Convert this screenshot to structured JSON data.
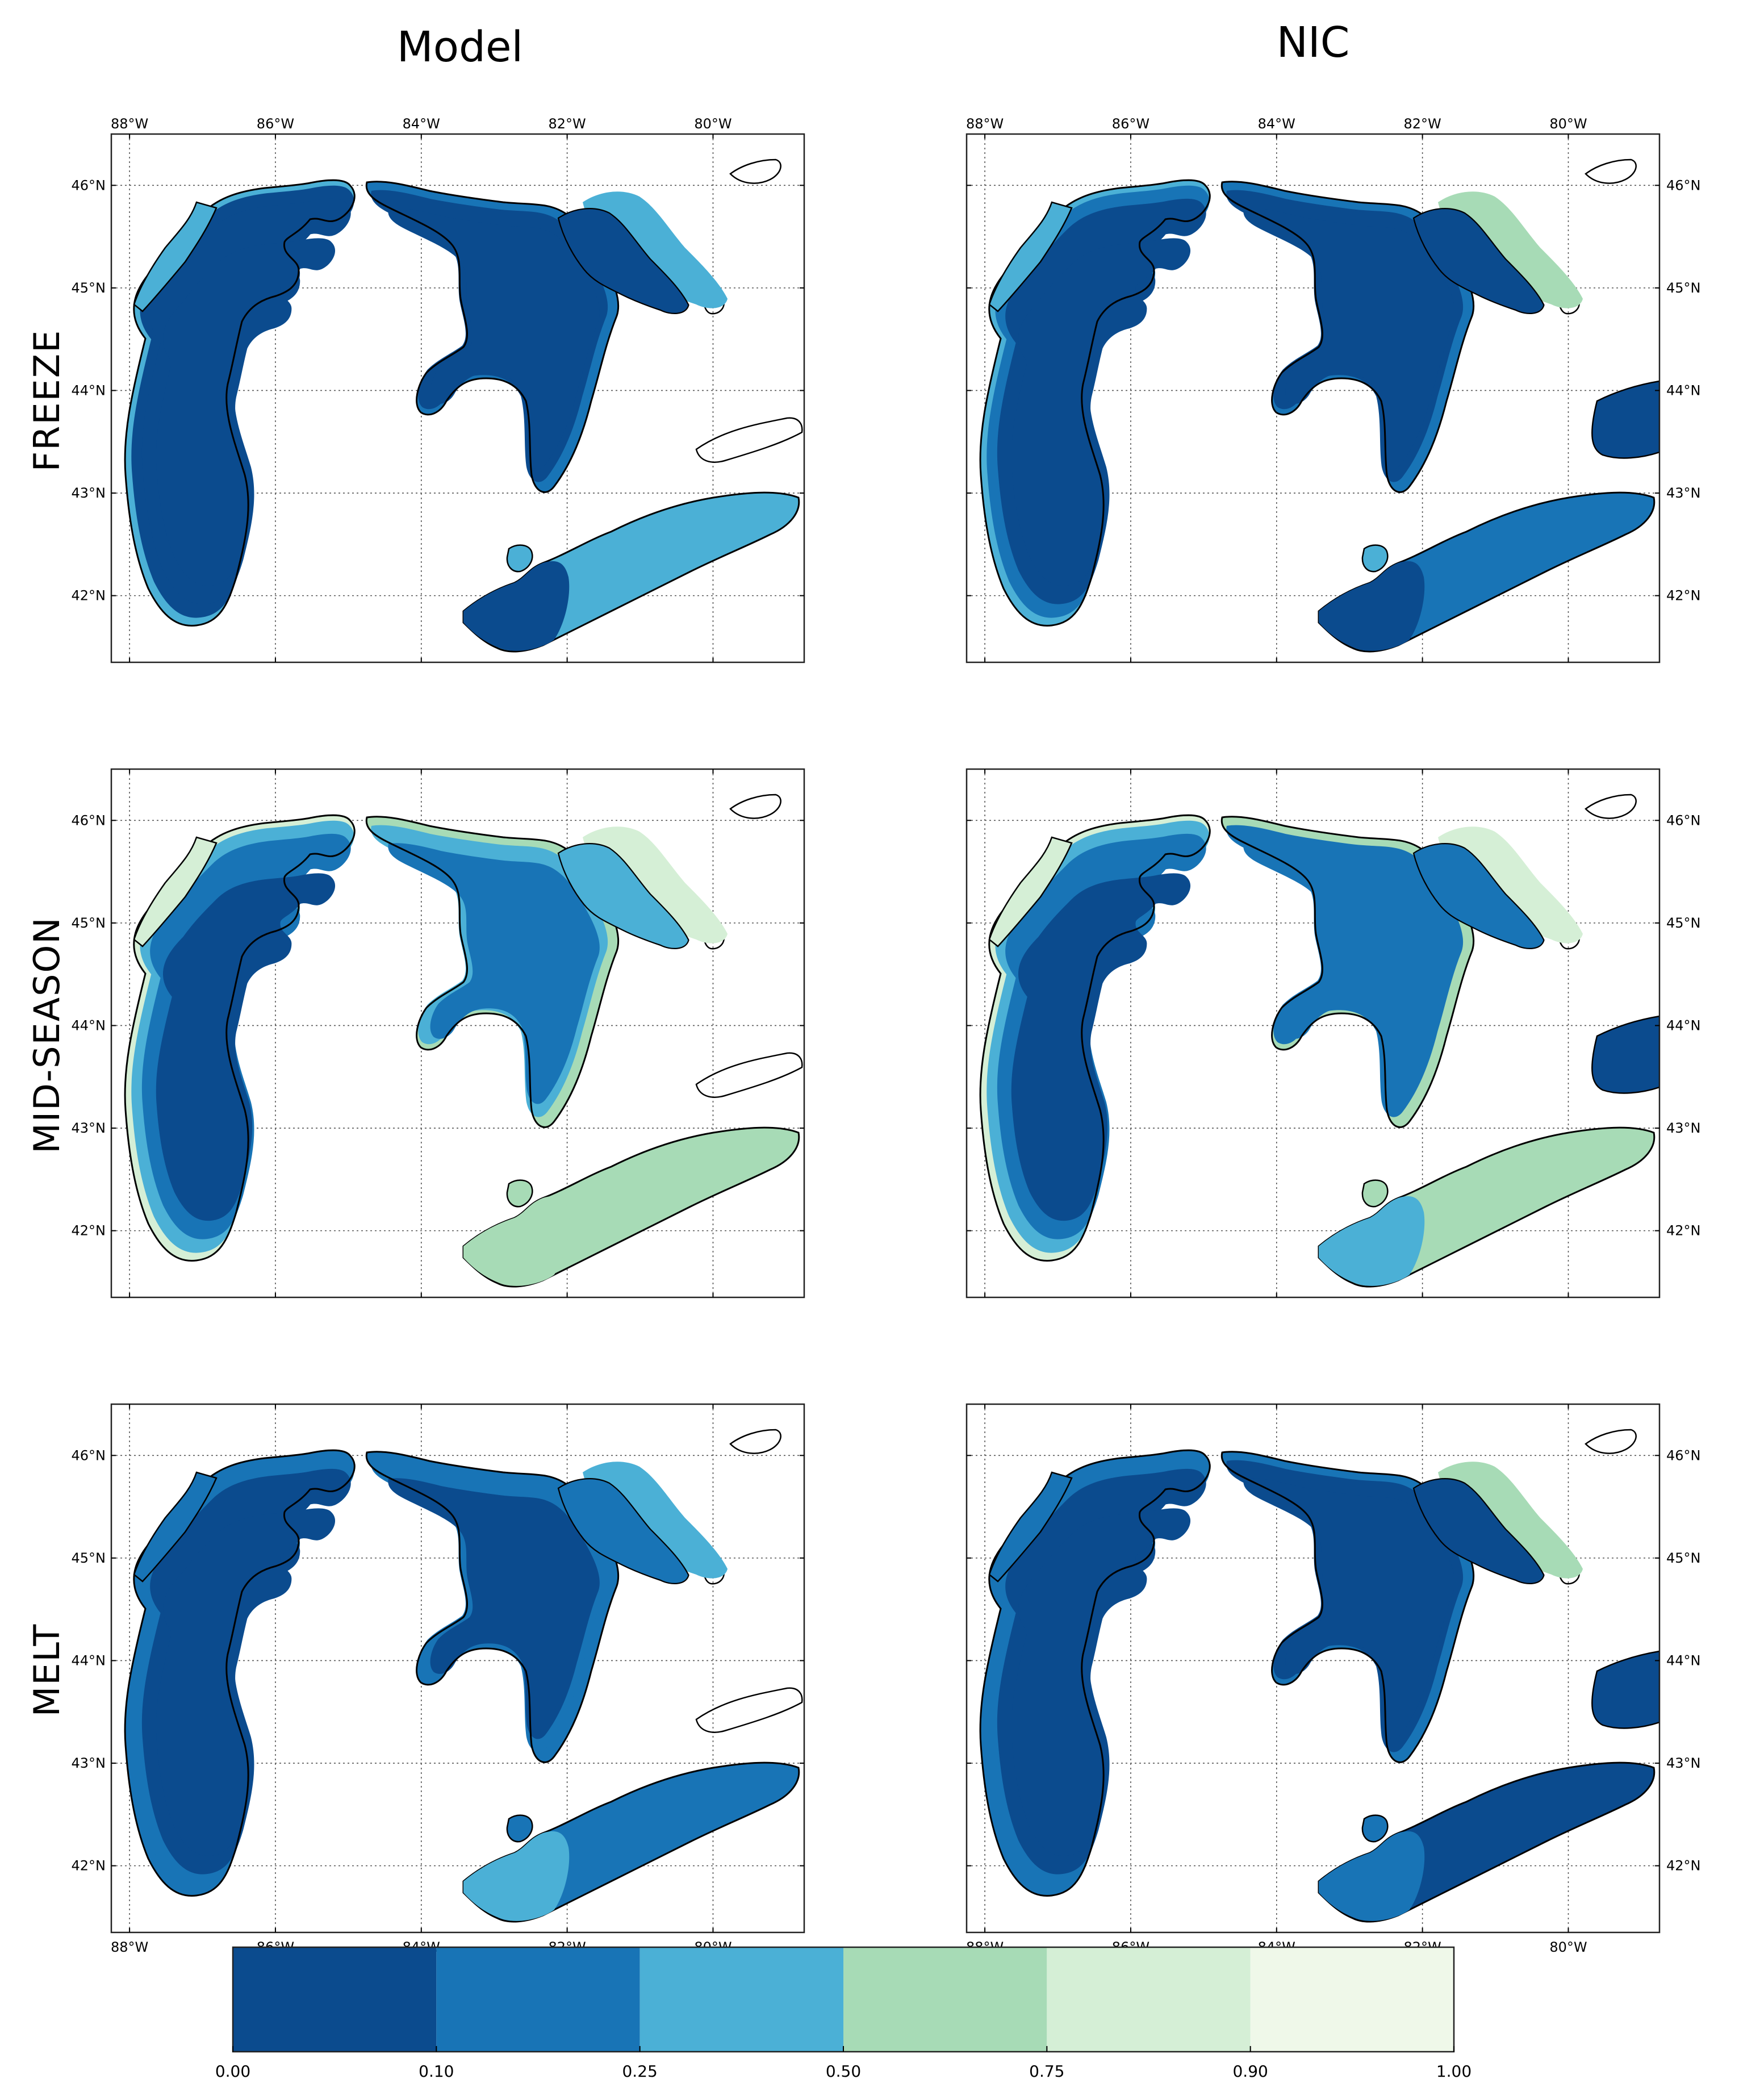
{
  "figure": {
    "column_titles": [
      "Model",
      "NIC"
    ],
    "row_titles": [
      "FREEZE",
      "MID-SEASON",
      "MELT"
    ]
  },
  "axes": {
    "lon_labels": [
      "88°W",
      "86°W",
      "84°W",
      "82°W",
      "80°W"
    ],
    "lat_labels": [
      "46°N",
      "45°N",
      "44°N",
      "43°N",
      "42°N"
    ],
    "lon_range": [
      -88.25,
      -78.75
    ],
    "lat_range": [
      41.35,
      46.5
    ]
  },
  "colorbar": {
    "ticks": [
      "0.00",
      "0.10",
      "0.25",
      "0.50",
      "0.75",
      "0.90",
      "1.00"
    ],
    "colors": [
      "#0b4b8e",
      "#1874b6",
      "#4bb0d6",
      "#a7dbb6",
      "#d5efd6",
      "#eff8e9"
    ]
  },
  "colors": {
    "land_outline": "#000000",
    "gridline": "#555555",
    "background": "#ffffff"
  },
  "panels": [
    {
      "row": 0,
      "col": 0,
      "michigan": [
        0,
        0,
        0,
        2
      ],
      "huron": [
        0,
        0,
        1,
        2
      ],
      "erie": [
        0,
        2
      ],
      "stclair": 2,
      "ontario": false
    },
    {
      "row": 0,
      "col": 1,
      "michigan": [
        0,
        0,
        1,
        2
      ],
      "huron": [
        0,
        0,
        1,
        3
      ],
      "erie": [
        0,
        1
      ],
      "stclair": 2,
      "ontario": true
    },
    {
      "row": 1,
      "col": 0,
      "michigan": [
        0,
        1,
        2,
        4
      ],
      "huron": [
        1,
        2,
        3,
        4
      ],
      "erie": [
        3,
        3
      ],
      "stclair": 3,
      "ontario": false
    },
    {
      "row": 1,
      "col": 1,
      "michigan": [
        0,
        1,
        2,
        4
      ],
      "huron": [
        1,
        1,
        3,
        4
      ],
      "erie": [
        2,
        3
      ],
      "stclair": 3,
      "ontario": true
    },
    {
      "row": 2,
      "col": 0,
      "michigan": [
        0,
        0,
        1,
        1
      ],
      "huron": [
        0,
        1,
        1,
        2
      ],
      "erie": [
        2,
        1
      ],
      "stclair": 1,
      "ontario": false
    },
    {
      "row": 2,
      "col": 1,
      "michigan": [
        0,
        0,
        1,
        1
      ],
      "huron": [
        0,
        0,
        1,
        3
      ],
      "erie": [
        1,
        0
      ],
      "stclair": 1,
      "ontario": true
    }
  ]
}
